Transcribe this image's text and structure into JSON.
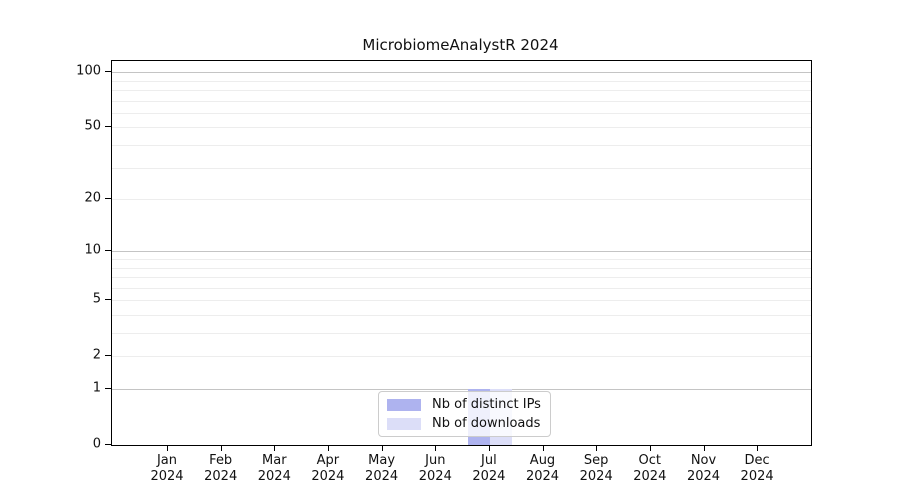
{
  "title": "MicrobiomeAnalystR 2024",
  "colors": {
    "distinct_ips": "#aeb3ef",
    "downloads": "#dcdef8",
    "grid_major": "#c4c4c4",
    "grid_minor": "#ededed",
    "axis": "#000000",
    "text": "#111111",
    "legend_border": "#cccccc"
  },
  "chart_data": {
    "type": "bar",
    "title": "MicrobiomeAnalystR 2024",
    "xlabel": "",
    "ylabel": "",
    "y_scale": "log1p",
    "ylim": [
      0,
      115
    ],
    "grid": "horizontal",
    "legend_position": "lower center",
    "categories": [
      "Jan",
      "Feb",
      "Mar",
      "Apr",
      "May",
      "Jun",
      "Jul",
      "Aug",
      "Sep",
      "Oct",
      "Nov",
      "Dec"
    ],
    "category_year": "2024",
    "yticks": [
      0,
      1,
      2,
      5,
      10,
      20,
      50,
      100
    ],
    "minor_gridlines": [
      2,
      3,
      4,
      5,
      6,
      7,
      8,
      9,
      20,
      30,
      40,
      50,
      60,
      70,
      80,
      90
    ],
    "major_gridlines": [
      1,
      10,
      100
    ],
    "series": [
      {
        "name": "Nb of distinct IPs",
        "color": "#aeb3ef",
        "values": [
          0,
          0,
          0,
          0,
          0,
          0,
          1,
          0,
          0,
          0,
          0,
          0
        ]
      },
      {
        "name": "Nb of downloads",
        "color": "#dcdef8",
        "values": [
          0,
          0,
          0,
          0,
          0,
          0,
          1,
          0,
          0,
          0,
          0,
          0
        ]
      }
    ]
  }
}
